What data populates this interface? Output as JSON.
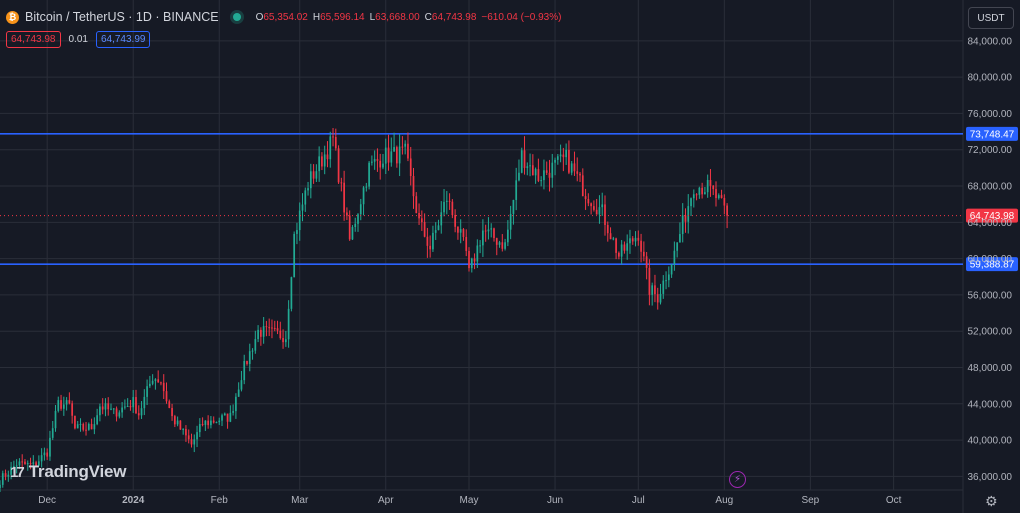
{
  "header": {
    "title": "Bitcoin / TetherUS · 1D · BINANCE",
    "coin_glyph": "₿",
    "ohlc": [
      {
        "key": "O",
        "value": "65,354.02"
      },
      {
        "key": "H",
        "value": "65,596.14"
      },
      {
        "key": "L",
        "value": "63,668.00"
      },
      {
        "key": "C",
        "value": "64,743.98"
      },
      {
        "key": "",
        "value": "−610.04 (−0.93%)"
      }
    ]
  },
  "quotes": {
    "sell": "64,743.98",
    "spread": "0.01",
    "buy": "64,743.99"
  },
  "currency_button": "USDT",
  "brand": {
    "logo": "17",
    "name": "TradingView"
  },
  "colors": {
    "background": "#161a25",
    "grid": "#2a2e39",
    "up": "#22ab94",
    "down": "#f23645",
    "level_line": "#2962ff",
    "price_label": "#f23645"
  },
  "icons": {
    "settings": "gear-icon",
    "alert": "lightning-icon"
  },
  "chart_data": {
    "type": "candlestick",
    "symbol": "BTCUSDT",
    "interval": "1D",
    "ylim": [
      34500,
      88500
    ],
    "y_ticks": [
      36000,
      40000,
      44000,
      48000,
      52000,
      56000,
      60000,
      64000,
      68000,
      72000,
      76000,
      80000,
      84000
    ],
    "y_tick_labels": [
      "36,000.00",
      "40,000.00",
      "44,000.00",
      "48,000.00",
      "52,000.00",
      "56,000.00",
      "60,000.00",
      "64,000.00",
      "68,000.00",
      "72,000.00",
      "76,000.00",
      "80,000.00",
      "84,000.00"
    ],
    "x_range": [
      "2023-11-14",
      "2024-10-26"
    ],
    "x_ticks": [
      {
        "label": "Dec",
        "date": "2023-12-01"
      },
      {
        "label": "2024",
        "date": "2024-01-01"
      },
      {
        "label": "Feb",
        "date": "2024-02-01"
      },
      {
        "label": "Mar",
        "date": "2024-03-01"
      },
      {
        "label": "Apr",
        "date": "2024-04-01"
      },
      {
        "label": "May",
        "date": "2024-05-01"
      },
      {
        "label": "Jun",
        "date": "2024-06-01"
      },
      {
        "label": "Jul",
        "date": "2024-07-01"
      },
      {
        "label": "Aug",
        "date": "2024-08-01"
      },
      {
        "label": "Sep",
        "date": "2024-09-01"
      },
      {
        "label": "Oct",
        "date": "2024-10-01"
      }
    ],
    "horizontal_lines": [
      {
        "value": 73748.47,
        "label": "73,748.47"
      },
      {
        "value": 59388.87,
        "label": "59,388.87"
      }
    ],
    "last_price": {
      "value": 64743.98,
      "label": "64,743.98"
    },
    "candles_start": "2023-11-14",
    "close_anchors": [
      [
        "2023-11-14",
        35600
      ],
      [
        "2023-11-20",
        37400
      ],
      [
        "2023-11-26",
        37200
      ],
      [
        "2023-12-01",
        38700
      ],
      [
        "2023-12-05",
        44000
      ],
      [
        "2023-12-09",
        43800
      ],
      [
        "2023-12-11",
        41200
      ],
      [
        "2023-12-17",
        41400
      ],
      [
        "2023-12-20",
        43800
      ],
      [
        "2023-12-25",
        43000
      ],
      [
        "2024-01-01",
        44200
      ],
      [
        "2024-01-03",
        42900
      ],
      [
        "2024-01-08",
        47000
      ],
      [
        "2024-01-11",
        46500
      ],
      [
        "2024-01-15",
        42500
      ],
      [
        "2024-01-22",
        39500
      ],
      [
        "2024-01-26",
        41800
      ],
      [
        "2024-02-05",
        42600
      ],
      [
        "2024-02-09",
        47200
      ],
      [
        "2024-02-15",
        52000
      ],
      [
        "2024-02-25",
        51500
      ],
      [
        "2024-02-28",
        62500
      ],
      [
        "2024-03-04",
        68300
      ],
      [
        "2024-03-13",
        73100
      ],
      [
        "2024-03-19",
        62000
      ],
      [
        "2024-03-26",
        70000
      ],
      [
        "2024-03-31",
        71300
      ],
      [
        "2024-04-08",
        71600
      ],
      [
        "2024-04-13",
        64000
      ],
      [
        "2024-04-17",
        61200
      ],
      [
        "2024-04-23",
        66700
      ],
      [
        "2024-04-30",
        60600
      ],
      [
        "2024-05-01",
        58300
      ],
      [
        "2024-05-06",
        63100
      ],
      [
        "2024-05-14",
        61500
      ],
      [
        "2024-05-20",
        71400
      ],
      [
        "2024-05-26",
        69000
      ],
      [
        "2024-06-05",
        71000
      ],
      [
        "2024-06-12",
        67300
      ],
      [
        "2024-06-18",
        65100
      ],
      [
        "2024-06-24",
        60300
      ],
      [
        "2024-07-01",
        62800
      ],
      [
        "2024-07-05",
        56600
      ],
      [
        "2024-07-08",
        55800
      ],
      [
        "2024-07-14",
        60600
      ],
      [
        "2024-07-21",
        68100
      ],
      [
        "2024-07-26",
        67800
      ],
      [
        "2024-07-29",
        66800
      ],
      [
        "2024-08-02",
        64744
      ]
    ]
  }
}
